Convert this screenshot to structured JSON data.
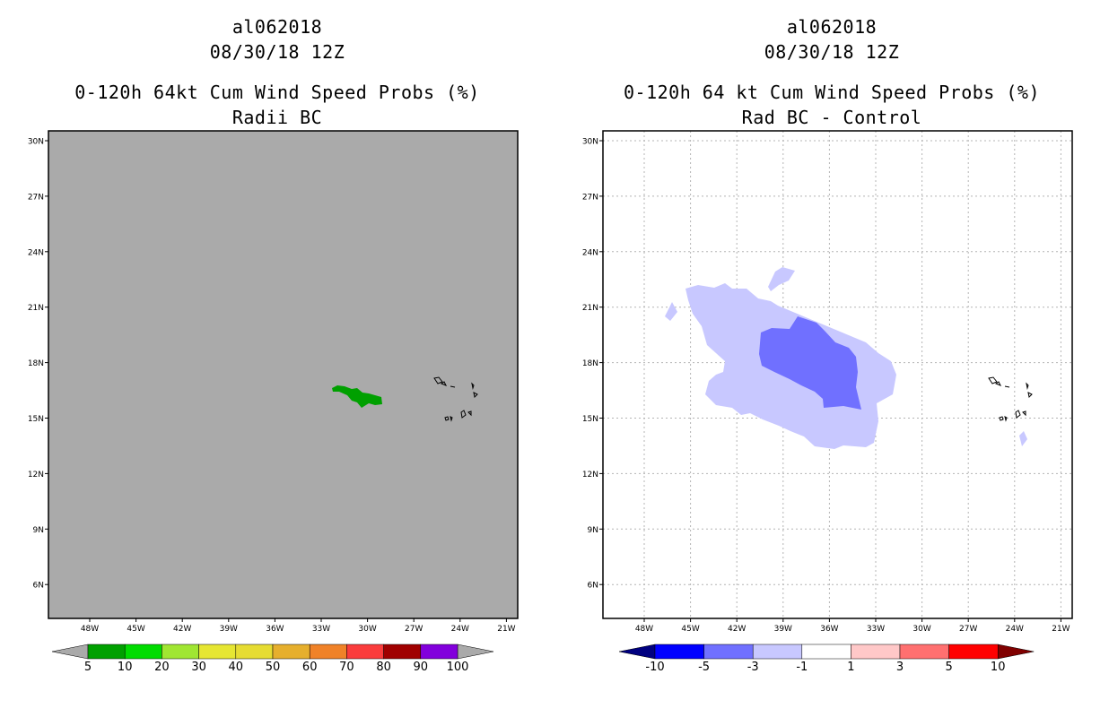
{
  "panels": [
    {
      "storm_id": "al062018",
      "datetime": "08/30/18 12Z",
      "product": "0-120h 64kt Cum Wind Speed Probs (%)",
      "subtitle": "Radii BC",
      "background_color": "#aaaaaa",
      "lat_labels": [
        "30N",
        "27N",
        "24N",
        "21N",
        "18N",
        "15N",
        "12N",
        "9N",
        "6N"
      ],
      "lon_labels": [
        "48W",
        "45W",
        "42W",
        "39W",
        "36W",
        "33W",
        "30W",
        "27W",
        "24W",
        "21W"
      ],
      "colorbar": {
        "labels": [
          "5",
          "10",
          "20",
          "30",
          "40",
          "50",
          "60",
          "70",
          "80",
          "90",
          "100"
        ],
        "colors": [
          "#00a000",
          "#00dc00",
          "#a0e632",
          "#e6e632",
          "#e6dc32",
          "#e6af2d",
          "#f08228",
          "#fa3c3c",
          "#a00000",
          "#8200dc"
        ],
        "left_arrow_color": "#aaaaaa",
        "right_arrow_color": "#aaaaaa"
      }
    },
    {
      "storm_id": "al062018",
      "datetime": "08/30/18 12Z",
      "product": "0-120h 64 kt Cum Wind Speed Probs (%)",
      "subtitle": "Rad BC - Control",
      "background_color": "#ffffff",
      "lat_labels": [
        "30N",
        "27N",
        "24N",
        "21N",
        "18N",
        "15N",
        "12N",
        "9N",
        "6N"
      ],
      "lon_labels": [
        "48W",
        "45W",
        "42W",
        "39W",
        "36W",
        "33W",
        "30W",
        "27W",
        "24W",
        "21W"
      ],
      "colorbar": {
        "labels": [
          "-10",
          "-5",
          "-3",
          "-1",
          "1",
          "3",
          "5",
          "10"
        ],
        "colors": [
          "#0000ff",
          "#7070ff",
          "#c8c8ff",
          "#ffffff",
          "#ffc8c8",
          "#ff7070",
          "#ff0000"
        ],
        "left_arrow_color": "#000080",
        "right_arrow_color": "#800000"
      }
    }
  ]
}
